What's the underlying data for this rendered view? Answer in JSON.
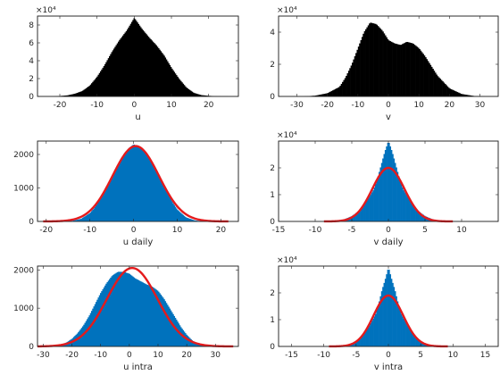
{
  "chart_data": [
    {
      "id": "u",
      "type": "bar",
      "xlabel": "u",
      "exponent_label": "×10⁴",
      "scale": 10000,
      "xlim": [
        -26,
        28
      ],
      "ylim": [
        0,
        9
      ],
      "xticks": [
        -20,
        -10,
        0,
        10,
        20
      ],
      "yticks": [
        0,
        2,
        4,
        6,
        8
      ],
      "bar_color": "#000000",
      "fit": null,
      "histogram": {
        "x": [
          -26,
          -24,
          -22,
          -20,
          -18,
          -16,
          -14,
          -12,
          -10,
          -8,
          -6,
          -4,
          -2,
          0,
          2,
          4,
          6,
          8,
          10,
          12,
          14,
          16,
          18,
          20,
          22,
          24,
          26,
          28
        ],
        "y": [
          0,
          0,
          0,
          0.05,
          0.12,
          0.3,
          0.6,
          1.2,
          2.2,
          3.5,
          5.0,
          6.3,
          7.4,
          8.8,
          7.6,
          6.6,
          5.7,
          4.6,
          3.2,
          2.0,
          1.0,
          0.4,
          0.15,
          0.07,
          0.03,
          0.01,
          0,
          0
        ]
      }
    },
    {
      "id": "v",
      "type": "bar",
      "xlabel": "v",
      "exponent_label": "×10⁴",
      "scale": 10000,
      "xlim": [
        -36,
        36
      ],
      "ylim": [
        0,
        5
      ],
      "xticks": [
        -30,
        -20,
        -10,
        0,
        10,
        20,
        30
      ],
      "yticks": [
        0,
        2,
        4
      ],
      "bar_color": "#000000",
      "fit": null,
      "histogram": {
        "x": [
          -36,
          -32,
          -28,
          -24,
          -20,
          -16,
          -14,
          -12,
          -10,
          -8,
          -6,
          -4,
          -2,
          0,
          2,
          4,
          6,
          8,
          10,
          12,
          14,
          16,
          20,
          24,
          28,
          32,
          36
        ],
        "y": [
          0,
          0,
          0,
          0.05,
          0.2,
          0.6,
          1.2,
          2.0,
          3.0,
          4.0,
          4.6,
          4.5,
          4.1,
          3.5,
          3.3,
          3.2,
          3.4,
          3.3,
          3.0,
          2.5,
          1.9,
          1.3,
          0.5,
          0.15,
          0.03,
          0,
          0
        ]
      }
    },
    {
      "id": "u_daily",
      "type": "bar",
      "xlabel": "u daily",
      "exponent_label": "",
      "scale": 1,
      "xlim": [
        -22,
        24
      ],
      "ylim": [
        0,
        2400
      ],
      "xticks": [
        -20,
        -10,
        0,
        10,
        20
      ],
      "yticks": [
        0,
        1000,
        2000
      ],
      "bar_color": "#0072bd",
      "fit": {
        "color": "#e41a1c",
        "mean": 0.5,
        "sd": 5.3,
        "peak": 2250
      },
      "histogram": {
        "x": [
          -20,
          -18,
          -16,
          -14,
          -12,
          -10,
          -9,
          -8,
          -7,
          -6,
          -5,
          -4,
          -3,
          -2,
          -1,
          0,
          1,
          2,
          3,
          4,
          5,
          6,
          7,
          8,
          9,
          10,
          12,
          14,
          16,
          18
        ],
        "y": [
          0,
          0,
          5,
          20,
          80,
          250,
          400,
          600,
          850,
          1100,
          1350,
          1600,
          1850,
          2050,
          2200,
          2300,
          2250,
          2150,
          2000,
          1800,
          1550,
          1300,
          1050,
          800,
          550,
          350,
          120,
          30,
          0,
          0
        ]
      }
    },
    {
      "id": "v_daily",
      "type": "bar",
      "xlabel": "v daily",
      "exponent_label": "×10⁴",
      "scale": 10000,
      "xlim": [
        -15,
        15
      ],
      "ylim": [
        0,
        3
      ],
      "xticks": [
        -15,
        -10,
        -5,
        0,
        5,
        10
      ],
      "yticks": [
        0,
        1,
        2
      ],
      "bar_color": "#0072bd",
      "fit": {
        "color": "#e41a1c",
        "mean": 0,
        "sd": 2.2,
        "peak": 2.0
      },
      "histogram": {
        "x": [
          -10,
          -8,
          -7,
          -6,
          -5,
          -4,
          -3,
          -2,
          -1.5,
          -1,
          -0.5,
          0,
          0.5,
          1,
          1.5,
          2,
          3,
          4,
          5,
          6,
          7,
          8,
          10
        ],
        "y": [
          0,
          0.01,
          0.03,
          0.08,
          0.2,
          0.4,
          0.75,
          1.2,
          1.6,
          2.1,
          2.6,
          3.0,
          2.6,
          2.1,
          1.6,
          1.2,
          0.75,
          0.4,
          0.2,
          0.08,
          0.03,
          0.01,
          0
        ]
      }
    },
    {
      "id": "u_intra",
      "type": "bar",
      "xlabel": "u intra",
      "exponent_label": "",
      "scale": 1,
      "xlim": [
        -32,
        38
      ],
      "ylim": [
        0,
        2100
      ],
      "xticks": [
        -30,
        -20,
        -10,
        0,
        10,
        20,
        30
      ],
      "yticks": [
        0,
        1000,
        2000
      ],
      "bar_color": "#0072bd",
      "fit": {
        "color": "#e41a1c",
        "mean": 1,
        "sd": 8.8,
        "peak": 2050
      },
      "histogram": {
        "x": [
          -28,
          -26,
          -24,
          -22,
          -20,
          -18,
          -16,
          -14,
          -12,
          -10,
          -8,
          -6,
          -4,
          -2,
          0,
          2,
          4,
          6,
          8,
          10,
          12,
          14,
          16,
          18,
          20,
          22,
          24,
          26,
          28
        ],
        "y": [
          0,
          10,
          40,
          100,
          200,
          350,
          550,
          800,
          1100,
          1400,
          1650,
          1850,
          1950,
          1950,
          1900,
          1780,
          1700,
          1620,
          1560,
          1450,
          1250,
          1000,
          750,
          500,
          300,
          150,
          60,
          20,
          0
        ]
      }
    },
    {
      "id": "v_intra",
      "type": "bar",
      "xlabel": "v intra",
      "exponent_label": "×10⁴",
      "scale": 10000,
      "xlim": [
        -17,
        17
      ],
      "ylim": [
        0,
        3
      ],
      "xticks": [
        -15,
        -10,
        -5,
        0,
        5,
        10,
        15
      ],
      "yticks": [
        0,
        1,
        2
      ],
      "bar_color": "#0072bd",
      "fit": {
        "color": "#e41a1c",
        "mean": 0,
        "sd": 2.3,
        "peak": 1.9
      },
      "histogram": {
        "x": [
          -10,
          -8,
          -7,
          -6,
          -5,
          -4,
          -3,
          -2,
          -1.5,
          -1,
          -0.5,
          0,
          0.5,
          1,
          1.5,
          2,
          3,
          4,
          5,
          6,
          7,
          8,
          10
        ],
        "y": [
          0,
          0.01,
          0.03,
          0.08,
          0.2,
          0.4,
          0.75,
          1.2,
          1.6,
          2.1,
          2.5,
          2.95,
          2.5,
          2.1,
          1.6,
          1.2,
          0.75,
          0.4,
          0.2,
          0.08,
          0.03,
          0.01,
          0
        ]
      }
    }
  ]
}
